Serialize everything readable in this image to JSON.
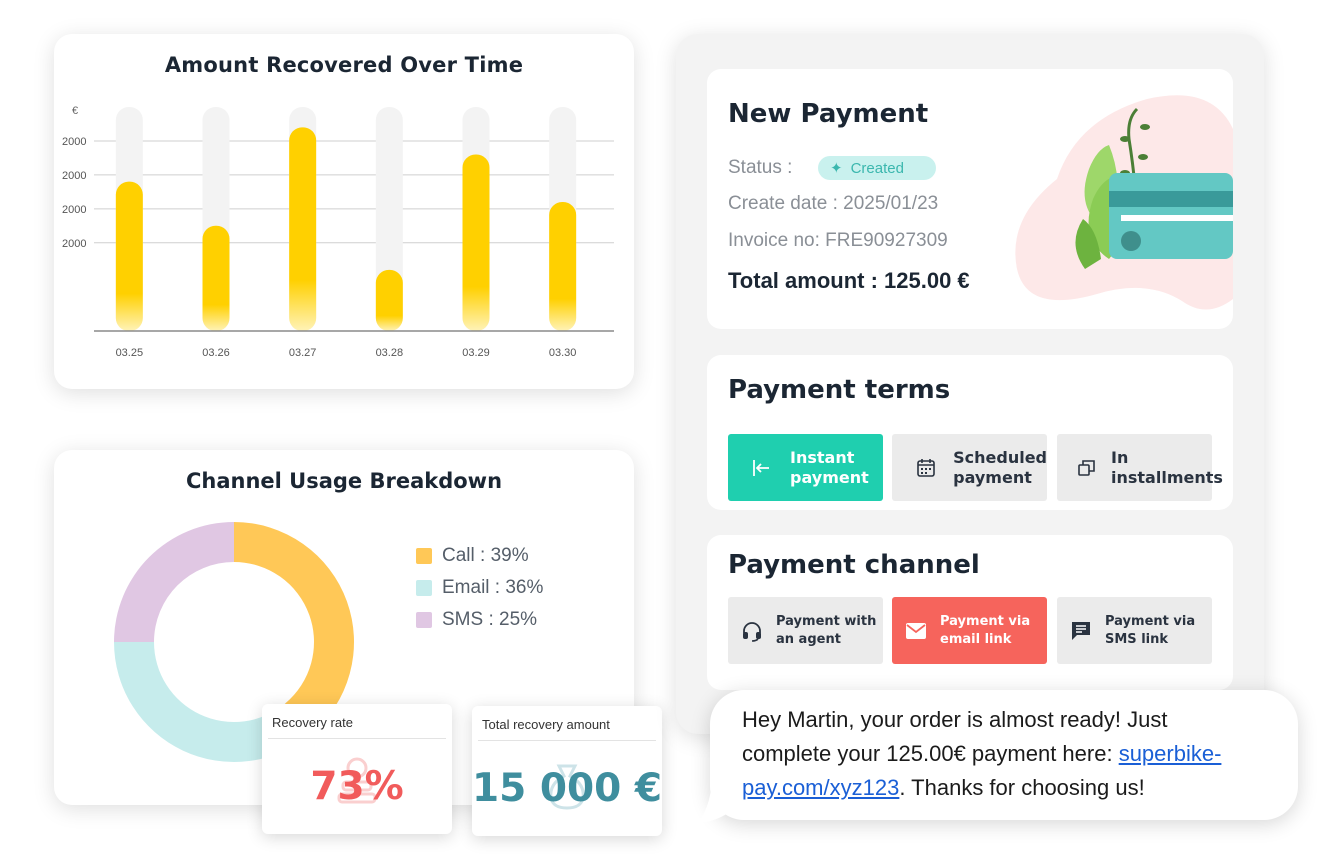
{
  "bar_chart": {
    "title": "Amount Recovered Over Time",
    "currency_symbol": "€",
    "chart_data": {
      "type": "bar",
      "title": "Amount Recovered Over Time",
      "categories": [
        "03.25",
        "03.26",
        "03.27",
        "03.28",
        "03.29",
        "03.30"
      ],
      "values": [
        2200,
        1550,
        3000,
        900,
        2600,
        1900
      ],
      "ytick_labels": [
        "2000",
        "2000",
        "2000",
        "2000"
      ],
      "ylabel": "€",
      "ylim": [
        0,
        3300
      ],
      "grid": true,
      "colors": {
        "bar": "#ffd000",
        "bar_fade": "#fff3b8",
        "track": "#f3f3f3",
        "grid": "#cfcfcf",
        "axis": "#8a8a8a"
      }
    }
  },
  "donut_chart": {
    "title": "Channel Usage Breakdown",
    "chart_data": {
      "type": "pie",
      "title": "Channel Usage Breakdown",
      "slices": [
        {
          "label": "Call",
          "value": 39,
          "color": "#ffc857"
        },
        {
          "label": "Email",
          "value": 36,
          "color": "#c6ecec"
        },
        {
          "label": "SMS",
          "value": 25,
          "color": "#e0c7e3"
        }
      ]
    },
    "legend": [
      {
        "text": "Call : 39%",
        "color": "#ffc857"
      },
      {
        "text": "Email : 36%",
        "color": "#c6ecec"
      },
      {
        "text": "SMS : 25%",
        "color": "#e0c7e3"
      }
    ]
  },
  "stats": {
    "recovery_rate": {
      "label": "Recovery rate",
      "value": "73%",
      "color": "#f15b5b"
    },
    "total_recovery": {
      "label": "Total recovery amount",
      "value": "15 000 €",
      "color": "#3f8e9e"
    }
  },
  "new_payment": {
    "title": "New Payment",
    "status_label": "Status :",
    "status_value": "Created",
    "create_date": "Create date : 2025/01/23",
    "invoice": "Invoice no: FRE90927309",
    "total": "Total amount : 125.00 €"
  },
  "payment_terms": {
    "title": "Payment terms",
    "options": [
      {
        "line1": "Instant",
        "line2": "payment",
        "icon": "arrow-left-bar-icon",
        "active": true
      },
      {
        "line1": "Scheduled",
        "line2": "payment",
        "icon": "calendar-icon",
        "active": false
      },
      {
        "line1": "In",
        "line2": "installments",
        "icon": "copy-icon",
        "active": false
      }
    ]
  },
  "payment_channel": {
    "title": "Payment channel",
    "options": [
      {
        "line1": "Payment with",
        "line2": "an agent",
        "icon": "headset-icon",
        "active": false
      },
      {
        "line1": "Payment via",
        "line2": "email link",
        "icon": "mail-icon",
        "active": true
      },
      {
        "line1": "Payment via",
        "line2": "SMS link",
        "icon": "chat-icon",
        "active": false
      }
    ]
  },
  "message": {
    "line1": "Hey Martin, your order is almost ready! Just",
    "line2_pre": "complete your 125.00€ payment here: ",
    "link_part1": "superbike-",
    "link_part2": "pay.com/xyz123",
    "line3_post": ". Thanks for choosing us!"
  }
}
